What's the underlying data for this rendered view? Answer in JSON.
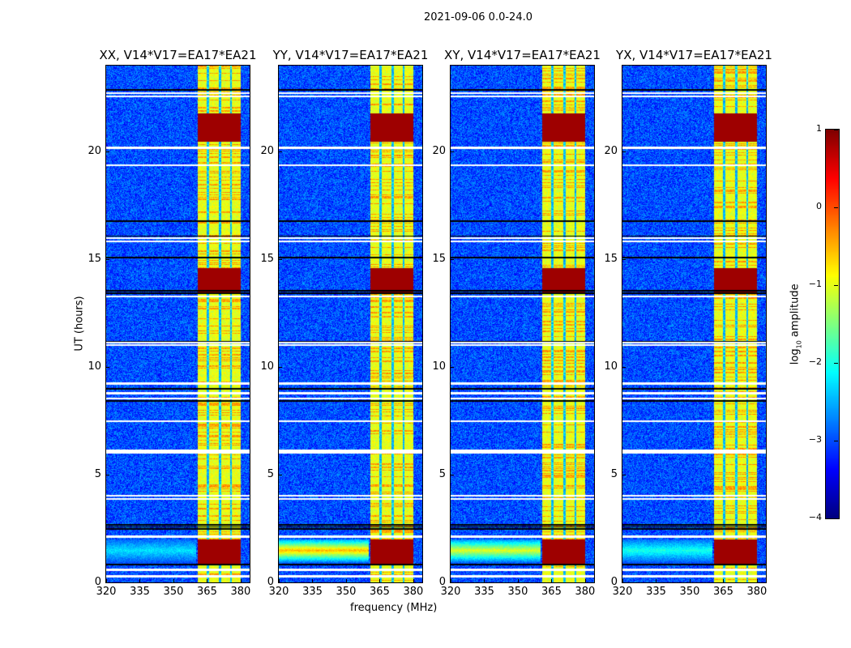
{
  "chart_data": {
    "type": "heatmap",
    "title": "2021-09-06 0.0-24.0",
    "xlabel": "frequency (MHz)",
    "ylabel": "UT (hours)",
    "xlim": [
      320,
      384
    ],
    "ylim": [
      0,
      24
    ],
    "xticks": [
      320,
      335,
      350,
      365,
      380
    ],
    "yticks": [
      0,
      5,
      10,
      15,
      20
    ],
    "panels": [
      {
        "title": "XX, V14*V17=EA17*EA21",
        "broadband_strength": 0.3
      },
      {
        "title": "YY, V14*V17=EA17*EA21",
        "broadband_strength": 1.0
      },
      {
        "title": "XY, V14*V17=EA17*EA21",
        "broadband_strength": 0.8
      },
      {
        "title": "YX, V14*V17=EA17*EA21",
        "broadband_strength": 0.4
      }
    ],
    "background_log_amplitude": -3.0,
    "rfi_band_mhz": [
      360.5,
      380
    ],
    "rfi_band_log_amplitude": -1.0,
    "rfi_band_gaps_mhz": [
      365.3,
      370.5,
      375.5
    ],
    "strong_rfi_hours": [
      [
        0.9,
        2.0
      ],
      [
        13.5,
        14.6
      ],
      [
        20.5,
        21.8
      ]
    ],
    "flagged_hours_white": [
      0.3,
      0.6,
      2.15,
      3.9,
      4.05,
      6.05,
      6.15,
      7.5,
      8.55,
      8.8,
      9.25,
      11.05,
      11.15,
      13.3,
      15.85,
      16.0,
      19.4,
      20.2,
      22.6,
      22.75
    ],
    "black_line_hours": [
      0.85,
      2.5,
      2.6,
      2.7,
      8.45,
      9.0,
      11.2,
      13.45,
      13.55,
      15.1,
      16.1,
      16.8,
      22.9
    ],
    "colorbar": {
      "label": "log10 amplitude",
      "label_main": "log",
      "label_sub": "10",
      "label_rest": " amplitude",
      "range": [
        -4,
        1
      ],
      "ticks": [
        "1",
        "0",
        "−1",
        "−2",
        "−3",
        "−4"
      ],
      "tick_values": [
        1,
        0,
        -1,
        -2,
        -3,
        -4
      ],
      "colormap": "jet"
    }
  }
}
